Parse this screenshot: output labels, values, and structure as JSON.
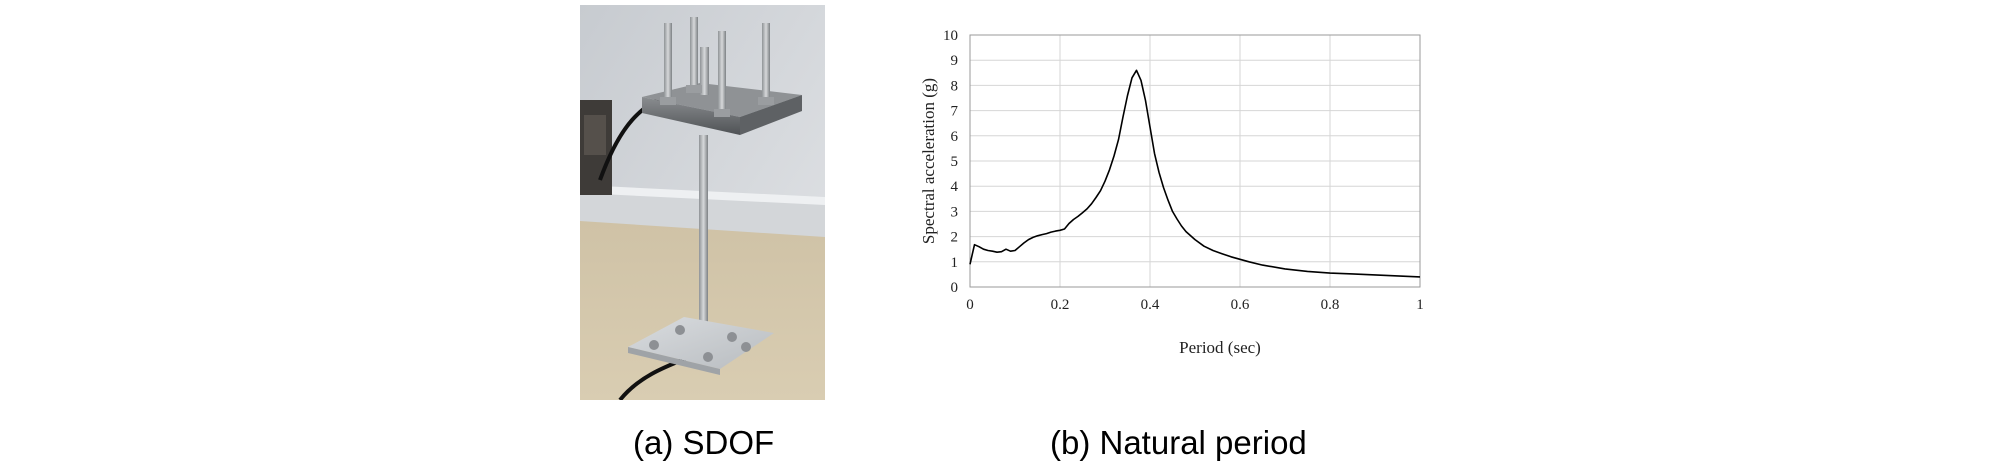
{
  "panels": {
    "a": {
      "caption": "(a) SDOF"
    },
    "b": {
      "caption": "(b) Natural period"
    }
  },
  "chart_data": {
    "type": "line",
    "xlabel": "Period (sec)",
    "ylabel": "Spectral acceleration (g)",
    "xlim": [
      0,
      1
    ],
    "ylim": [
      0,
      10
    ],
    "xticks": [
      0,
      0.2,
      0.4,
      0.6,
      0.8,
      1
    ],
    "xtick_labels": [
      "0",
      "0.2",
      "0.4",
      "0.6",
      "0.8",
      "1"
    ],
    "yticks": [
      0,
      1,
      2,
      3,
      4,
      5,
      6,
      7,
      8,
      9,
      10
    ],
    "ytick_labels": [
      "0",
      "1",
      "2",
      "3",
      "4",
      "5",
      "6",
      "7",
      "8",
      "9",
      "10"
    ],
    "grid": true,
    "legend": "none",
    "series": [
      {
        "color": "#000000",
        "x": [
          0,
          0.005,
          0.01,
          0.02,
          0.03,
          0.04,
          0.05,
          0.06,
          0.07,
          0.08,
          0.09,
          0.1,
          0.11,
          0.12,
          0.13,
          0.14,
          0.15,
          0.16,
          0.17,
          0.18,
          0.19,
          0.2,
          0.21,
          0.22,
          0.23,
          0.24,
          0.25,
          0.26,
          0.27,
          0.28,
          0.29,
          0.3,
          0.31,
          0.32,
          0.33,
          0.34,
          0.35,
          0.36,
          0.37,
          0.38,
          0.39,
          0.4,
          0.41,
          0.42,
          0.43,
          0.44,
          0.45,
          0.46,
          0.47,
          0.48,
          0.5,
          0.52,
          0.54,
          0.56,
          0.58,
          0.6,
          0.62,
          0.65,
          0.7,
          0.75,
          0.8,
          0.85,
          0.9,
          0.95,
          1.0
        ],
        "y": [
          0.9,
          1.3,
          1.68,
          1.6,
          1.5,
          1.45,
          1.42,
          1.38,
          1.4,
          1.5,
          1.42,
          1.45,
          1.6,
          1.75,
          1.88,
          1.97,
          2.03,
          2.08,
          2.12,
          2.18,
          2.22,
          2.25,
          2.3,
          2.52,
          2.68,
          2.8,
          2.95,
          3.1,
          3.3,
          3.55,
          3.82,
          4.2,
          4.65,
          5.2,
          5.85,
          6.75,
          7.6,
          8.3,
          8.6,
          8.2,
          7.4,
          6.35,
          5.3,
          4.55,
          3.95,
          3.45,
          3.0,
          2.7,
          2.42,
          2.2,
          1.88,
          1.62,
          1.45,
          1.32,
          1.2,
          1.1,
          1.0,
          0.87,
          0.72,
          0.62,
          0.55,
          0.52,
          0.48,
          0.44,
          0.4
        ]
      }
    ]
  }
}
